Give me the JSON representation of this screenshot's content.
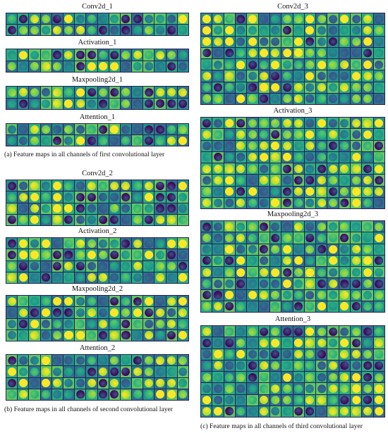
{
  "panels": {
    "a": {
      "caption": "(a) Feature maps in all channels of first convolutional layer",
      "blocks": [
        {
          "title": "Conv2d_1"
        },
        {
          "title": "Activation_1"
        },
        {
          "title": "Maxpooling2d_1"
        },
        {
          "title": "Attention_1"
        }
      ]
    },
    "b": {
      "caption": "(b) Feature maps in all channels of second convolutional layer",
      "blocks": [
        {
          "title": "Conv2d_2"
        },
        {
          "title": "Activation_2"
        },
        {
          "title": "Maxpooling2d_2"
        },
        {
          "title": "Attention_2"
        }
      ]
    },
    "c": {
      "caption": "(c) Feature maps in all channels of third convolutional layer",
      "blocks": [
        {
          "title": "Conv2d_3"
        },
        {
          "title": "Activation_3"
        },
        {
          "title": "Maxpooling2d_3"
        },
        {
          "title": "Attention_3"
        }
      ]
    }
  },
  "colors": {
    "palette": [
      "#440154",
      "#3b528b",
      "#2c728e",
      "#21918c",
      "#28ae80",
      "#5ec962",
      "#addc30",
      "#fde725"
    ],
    "border": "#2b1f57"
  }
}
